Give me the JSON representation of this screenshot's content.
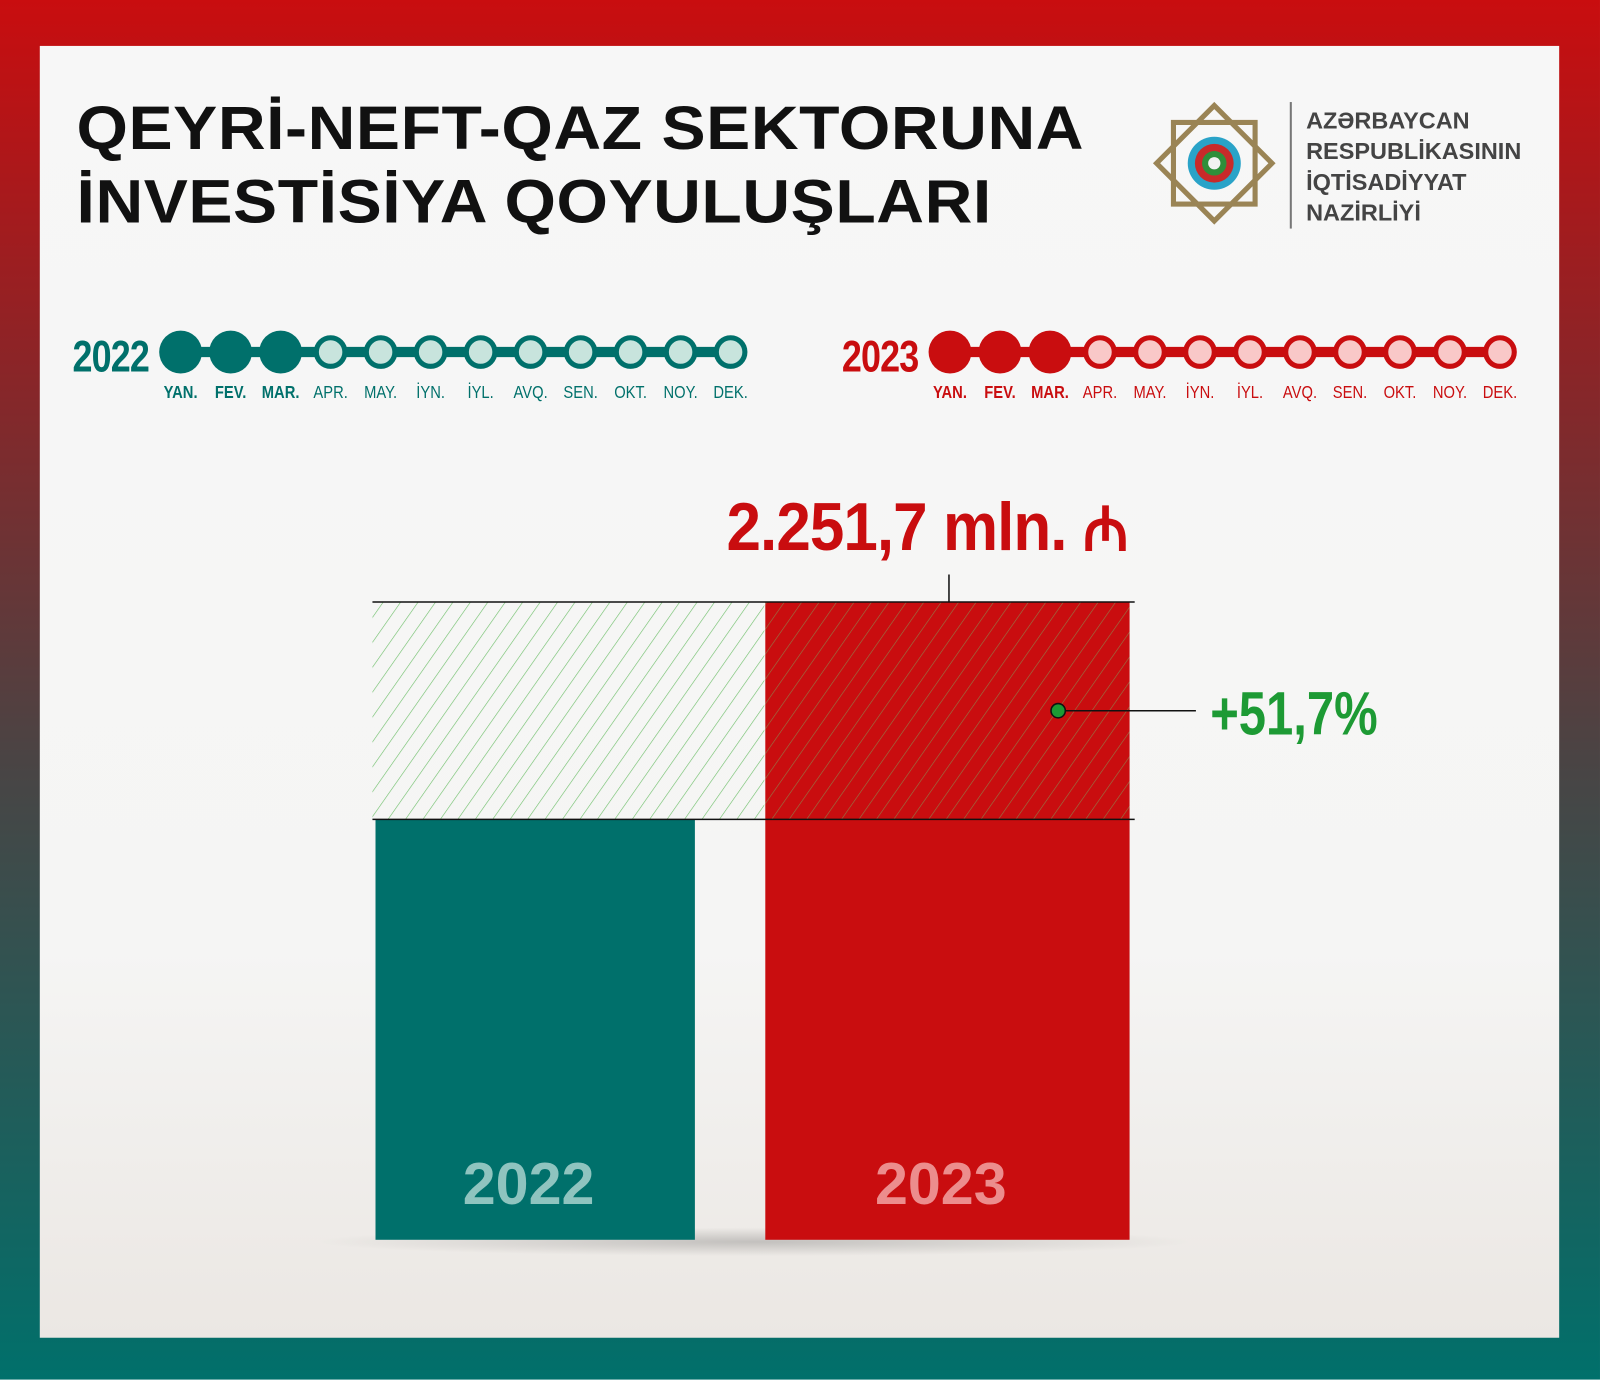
{
  "title": [
    "QEYRİ-NEFT-QAZ SEKTORUNA",
    "İNVESTİSİYA QOYULUŞLARI"
  ],
  "ministry": [
    "AZƏRBAYCAN",
    "RESPUBLİKASININ",
    "İQTİSADİYYAT",
    "NAZİRLİYİ"
  ],
  "timelines": [
    {
      "year": "2022",
      "color": "#00706b",
      "light": "#c8e4dd",
      "months_done": 3
    },
    {
      "year": "2023",
      "color": "#c90d0f",
      "light": "#f9c8c8",
      "months_done": 3
    }
  ],
  "months": [
    "YAN.",
    "FEV.",
    "MAR.",
    "APR.",
    "MAY.",
    "İYN.",
    "İYL.",
    "AVQ.",
    "SEN.",
    "OKT.",
    "NOY.",
    "DEK."
  ],
  "value_label": "2.251,7 mln.",
  "currency_icon": "manat-icon",
  "growth_label": "+51,7%",
  "chart_data": {
    "type": "bar",
    "categories": [
      "2022",
      "2023"
    ],
    "values": [
      1484.3,
      2251.7
    ],
    "colors": [
      "#00706b",
      "#c90d0f"
    ],
    "unit": "mln. manat",
    "annotations": [
      "2.251,7 mln.",
      "+51,7%"
    ],
    "growth_color": "#1d9a34"
  }
}
